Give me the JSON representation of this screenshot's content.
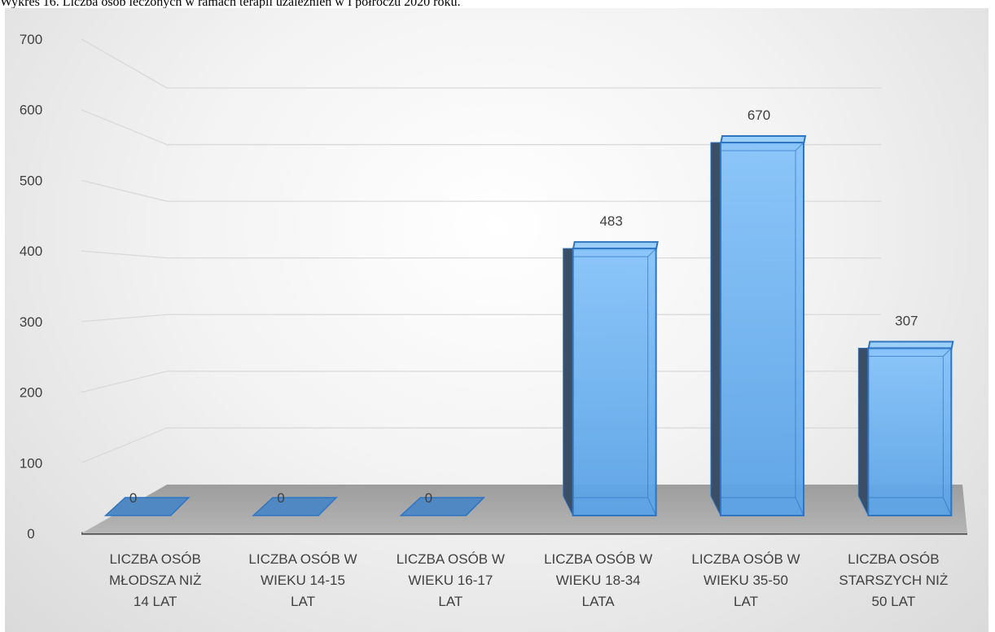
{
  "caption": "Wykres 16. Liczba osób leczonych w ramach terapii uzależnień w I półroczu 2020 roku.",
  "chart_data": {
    "type": "bar",
    "style": "3d-column",
    "title": "",
    "xlabel": "",
    "ylabel": "",
    "ylim": [
      0,
      700
    ],
    "yticks": [
      0,
      100,
      200,
      300,
      400,
      500,
      600,
      700
    ],
    "grid": true,
    "legend": "none",
    "categories": [
      [
        "LICZBA OSÓB",
        "MŁODSZA NIŻ",
        "14 LAT"
      ],
      [
        "LICZBA OSÓB W",
        "WIEKU 14-15",
        "LAT"
      ],
      [
        "LICZBA OSÓB W",
        "WIEKU 16-17",
        "LAT"
      ],
      [
        "LICZBA OSÓB W",
        "WIEKU 18-34",
        "LATA"
      ],
      [
        "LICZBA OSÓB W",
        "WIEKU 35-50",
        "LAT"
      ],
      [
        "LICZBA OSÓB",
        "STARSZYCH NIŻ",
        "50 LAT"
      ]
    ],
    "values": [
      0,
      0,
      0,
      483,
      670,
      307
    ],
    "data_labels": [
      "0",
      "0",
      "0",
      "483",
      "670",
      "307"
    ],
    "colors": {
      "bar_front": "#5ea8ee",
      "bar_edge": "#2f75c2",
      "bar_side_dark": "#3a4f66",
      "floor": "#a8a8a8",
      "grid": "#d9d9d9",
      "axis": "#404040",
      "text": "#404040"
    }
  }
}
